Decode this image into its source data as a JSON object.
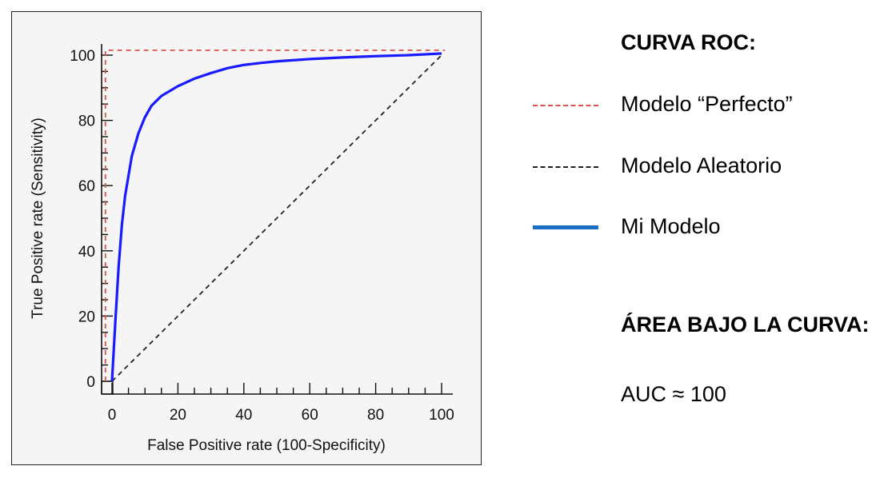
{
  "chart_data": {
    "type": "line",
    "xlabel": "False Positive rate (100-Specificity)",
    "ylabel": "True Positive rate (Sensitivity)",
    "xlim": [
      0,
      100
    ],
    "ylim": [
      0,
      100
    ],
    "x_ticks": [
      0,
      20,
      40,
      60,
      80,
      100
    ],
    "y_ticks": [
      0,
      20,
      40,
      60,
      80,
      100
    ],
    "series": [
      {
        "name": "Modelo “Perfecto”",
        "style": "dashed",
        "color": "#d9534f",
        "x": [
          -2,
          -2,
          101
        ],
        "y": [
          0,
          101.5,
          101.5
        ]
      },
      {
        "name": "Modelo Aleatorio",
        "style": "dashed",
        "color": "#222222",
        "x": [
          0,
          100
        ],
        "y": [
          0,
          100
        ]
      },
      {
        "name": "Mi Modelo",
        "style": "solid",
        "color": "#1a1aff",
        "x": [
          0,
          1,
          2,
          3,
          4,
          6,
          8,
          10,
          12,
          15,
          20,
          25,
          30,
          35,
          40,
          45,
          50,
          60,
          70,
          80,
          90,
          100
        ],
        "y": [
          0,
          18,
          35,
          48,
          57,
          69,
          76,
          81,
          84.5,
          87.5,
          90.5,
          92.8,
          94.5,
          96,
          97,
          97.6,
          98.1,
          98.8,
          99.3,
          99.7,
          100,
          100.5
        ]
      }
    ]
  },
  "legend": {
    "title": "CURVA ROC:",
    "items": [
      {
        "label": "Modelo “Perfecto”",
        "color": "#d9534f",
        "style": "dashed"
      },
      {
        "label": "Modelo Aleatorio",
        "color": "#222222",
        "style": "dashed"
      },
      {
        "label": "Mi Modelo",
        "color": "#1a6fc4",
        "style": "solid"
      }
    ]
  },
  "auc": {
    "title": "ÁREA BAJO LA CURVA:",
    "value": "AUC ≈ 100"
  }
}
